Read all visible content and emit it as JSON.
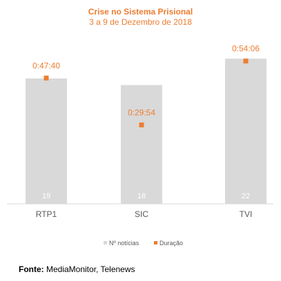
{
  "chart_data": {
    "type": "bar",
    "title": "Crise no Sistema Prisional",
    "subtitle": "3 a 9 de Dezembro de 2018",
    "categories": [
      "RTP1",
      "SIC",
      "TVI"
    ],
    "series": [
      {
        "name": "Nº notícias",
        "type": "bar",
        "axis": "primary",
        "values": [
          19,
          18,
          22
        ],
        "labels": [
          "19",
          "18",
          "22"
        ],
        "color": "#D9D9D9"
      },
      {
        "name": "Duração",
        "type": "marker",
        "axis": "secondary",
        "values": [
          2860,
          1794,
          3246
        ],
        "labels": [
          "0:47:40",
          "0:29:54",
          "0:54:06"
        ],
        "color": "#ED7D31"
      }
    ],
    "primary_ylim": [
      0,
      24
    ],
    "secondary_ylim": [
      0,
      3600
    ],
    "grid": false,
    "legend": "bottom"
  },
  "source": {
    "label": "Fonte:",
    "text": " MediaMonitor, Telenews"
  },
  "colors": {
    "accent": "#ED7D31",
    "bar": "#D9D9D9",
    "axis": "#D9D9D9",
    "text": "#595959"
  }
}
